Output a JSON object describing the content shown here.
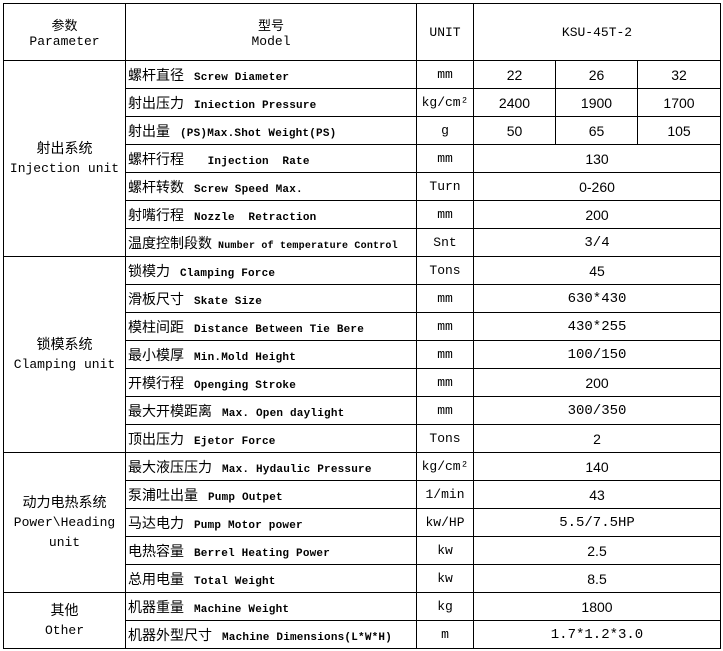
{
  "header": {
    "category_cn": "参数",
    "category_en": "Parameter",
    "param_cn": "型号",
    "param_en": "Model",
    "unit": "UNIT",
    "model": "KSU-45T-2"
  },
  "groups": [
    {
      "cn": "射出系统",
      "en": "Injection unit",
      "rows": [
        {
          "cn": "螺杆直径",
          "en": "Screw Diameter",
          "unit": "mm",
          "values": [
            "22",
            "26",
            "32"
          ]
        },
        {
          "cn": "射出压力",
          "en": "Iniection Pressure",
          "unit": "kg/cm²",
          "values": [
            "2400",
            "1900",
            "1700"
          ]
        },
        {
          "cn": "射出量",
          "en": "(PS)Max.Shot Weight(PS)",
          "unit": "g",
          "values": [
            "50",
            "65",
            "105"
          ]
        },
        {
          "cn": "螺杆行程",
          "en": "  Injection  Rate",
          "unit": "mm",
          "values": [
            "130"
          ]
        },
        {
          "cn": "螺杆转数",
          "en": "Screw Speed Max.",
          "unit": "Turn",
          "values": [
            "0-260"
          ]
        },
        {
          "cn": "射嘴行程",
          "en": "Nozzle  Retraction",
          "unit": "mm",
          "values": [
            "200"
          ]
        },
        {
          "cn": "温度控制段数",
          "en": "Number of temperature Control",
          "unit": "Snt",
          "values": [
            "3/4"
          ]
        }
      ]
    },
    {
      "cn": "锁模系统",
      "en": "Clamping unit",
      "rows": [
        {
          "cn": "锁模力",
          "en": "Clamping Force",
          "unit": "Tons",
          "values": [
            "45"
          ]
        },
        {
          "cn": "滑板尺寸",
          "en": "Skate Size",
          "unit": "mm",
          "values": [
            "630*430"
          ]
        },
        {
          "cn": "模柱间距",
          "en": "Distance Between Tie Bere",
          "unit": "mm",
          "values": [
            "430*255"
          ]
        },
        {
          "cn": "最小模厚",
          "en": "Min.Mold Height",
          "unit": "mm",
          "values": [
            "100/150"
          ]
        },
        {
          "cn": "开模行程",
          "en": "Openging Stroke",
          "unit": "mm",
          "values": [
            "200"
          ]
        },
        {
          "cn": "最大开模距离",
          "en": "Max. Open daylight",
          "unit": "mm",
          "values": [
            "300/350"
          ]
        },
        {
          "cn": "顶出压力",
          "en": "Ejetor Force",
          "unit": "Tons",
          "values": [
            "2"
          ]
        }
      ]
    },
    {
      "cn": "动力电热系统",
      "en": "Power\\Heading unit",
      "rows": [
        {
          "cn": "最大液压压力",
          "en": "Max. Hydaulic Pressure",
          "unit": "kg/cm²",
          "values": [
            "140"
          ]
        },
        {
          "cn": "泵浦吐出量",
          "en": "Pump Outpet",
          "unit": "1/min",
          "values": [
            "43"
          ]
        },
        {
          "cn": "马达电力",
          "en": "Pump Motor power",
          "unit": "kw/HP",
          "values": [
            "5.5/7.5HP"
          ]
        },
        {
          "cn": "电热容量",
          "en": "Berrel Heating Power",
          "unit": "kw",
          "values": [
            "2.5"
          ]
        },
        {
          "cn": "总用电量",
          "en": "Total Weight",
          "unit": "kw",
          "values": [
            "8.5"
          ]
        }
      ]
    },
    {
      "cn": "其他",
      "en": "Other",
      "rows": [
        {
          "cn": "机器重量",
          "en": "Machine Weight",
          "unit": "kg",
          "values": [
            "1800"
          ]
        },
        {
          "cn": "机器外型尺寸",
          "en": "Machine Dimensions(L*W*H)",
          "unit": "m",
          "values": [
            "1.7*1.2*3.0"
          ]
        }
      ]
    }
  ]
}
